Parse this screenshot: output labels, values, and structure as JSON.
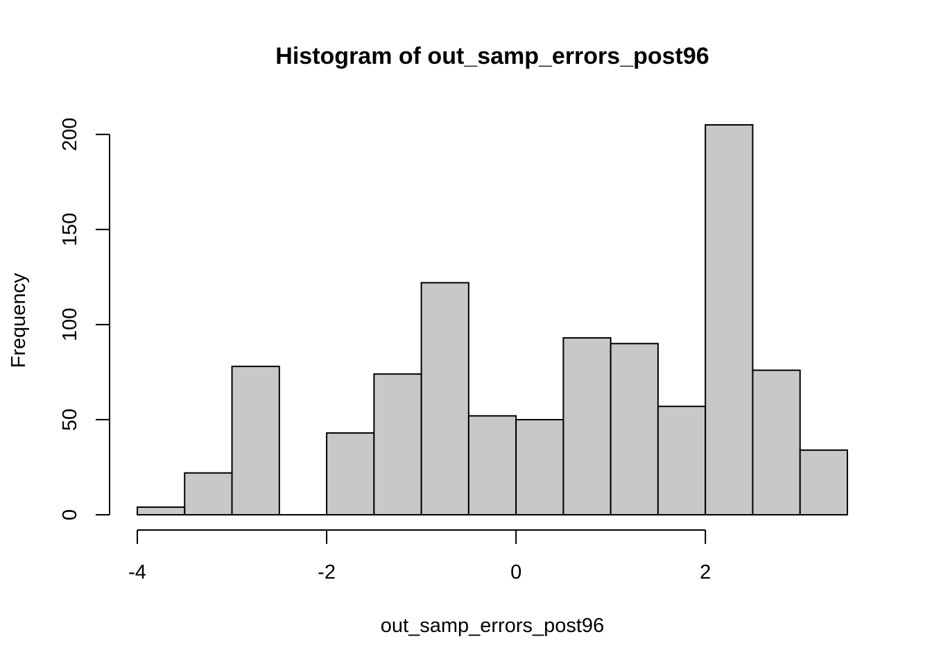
{
  "chart_data": {
    "type": "bar",
    "subtype": "histogram",
    "title": "Histogram of out_samp_errors_post96",
    "xlabel": "out_samp_errors_post96",
    "ylabel": "Frequency",
    "bin_edges": [
      -4.0,
      -3.5,
      -3.0,
      -2.5,
      -2.0,
      -1.5,
      -1.0,
      -0.5,
      0.0,
      0.5,
      1.0,
      1.5,
      2.0,
      2.5,
      3.0,
      3.5
    ],
    "values": [
      4,
      22,
      78,
      0,
      43,
      74,
      122,
      52,
      50,
      93,
      90,
      57,
      205,
      76,
      34
    ],
    "xlim": [
      -4.0,
      3.5
    ],
    "ylim": [
      0,
      205
    ],
    "x_ticks": [
      -4,
      -2,
      0,
      2
    ],
    "x_tick_labels": [
      "-4",
      "-2",
      "0",
      "2"
    ],
    "y_ticks": [
      0,
      50,
      100,
      150,
      200
    ],
    "y_tick_labels": [
      "0",
      "50",
      "100",
      "150",
      "200"
    ],
    "bar_color": "#c8c8c8",
    "grid": false,
    "legend": "none"
  }
}
